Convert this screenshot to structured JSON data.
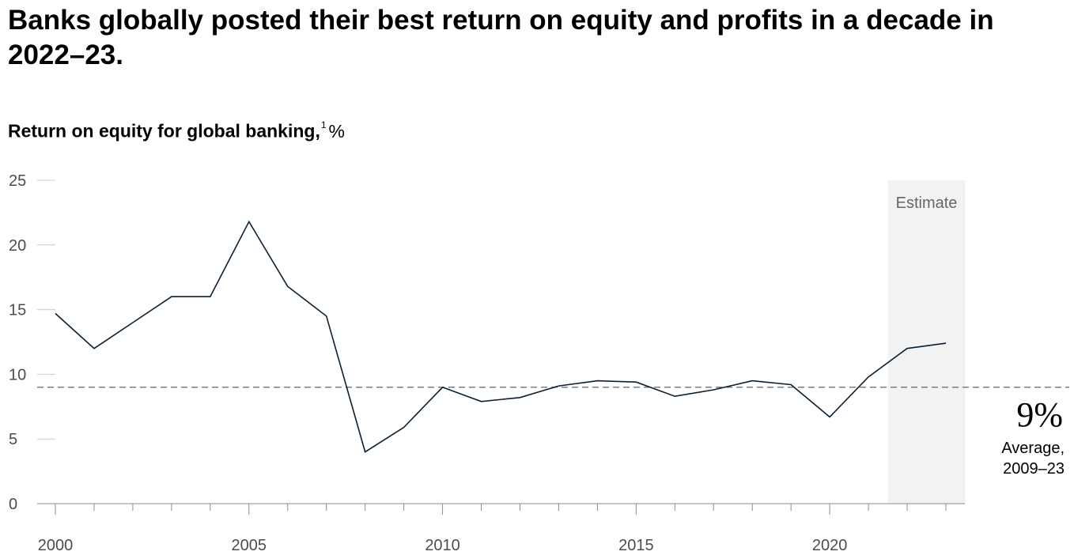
{
  "headline": "Banks globally posted their best return on equity and profits in a decade in 2022–23.",
  "chart_data": {
    "type": "line",
    "title": "Return on equity for global banking,",
    "footnote_marker": "1",
    "unit": "%",
    "x": [
      2000,
      2001,
      2002,
      2003,
      2004,
      2005,
      2006,
      2007,
      2008,
      2009,
      2010,
      2011,
      2012,
      2013,
      2014,
      2015,
      2016,
      2017,
      2018,
      2019,
      2020,
      2021,
      2022,
      2023
    ],
    "series": [
      {
        "values": [
          14.7,
          12.0,
          14.0,
          16.0,
          16.0,
          21.8,
          16.8,
          14.5,
          4.0,
          5.9,
          9.0,
          7.9,
          8.2,
          9.1,
          9.5,
          9.4,
          8.3,
          8.8,
          9.5,
          9.2,
          6.7,
          9.8,
          12.0,
          12.4
        ]
      }
    ],
    "xlim": [
      2000,
      2023
    ],
    "ylim": [
      0,
      25
    ],
    "x_ticks": [
      2000,
      2005,
      2010,
      2015,
      2020
    ],
    "y_ticks": [
      0,
      5,
      10,
      15,
      20,
      25
    ],
    "shaded_region": {
      "label": "Estimate",
      "from": 2021.5,
      "to": 2023.5,
      "color": "#f2f2f2"
    },
    "reference_line": {
      "value": 9,
      "style": "dashed",
      "display_value": "9%",
      "label_line1": "Average,",
      "label_line2": "2009–23"
    },
    "line_color": "#0b1f33",
    "grid": false
  }
}
